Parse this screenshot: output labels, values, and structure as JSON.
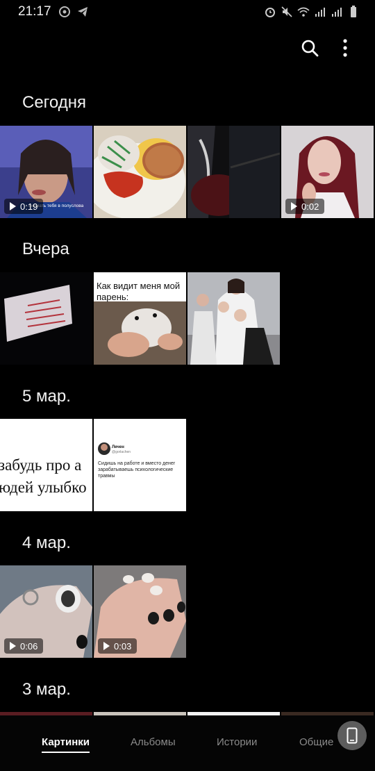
{
  "status_bar": {
    "time": "21:17"
  },
  "sections": [
    {
      "title": "Сегодня",
      "items": [
        {
          "kind": "video",
          "duration": "0:19",
          "caption": "...снимать тебя в полуслова"
        },
        {
          "kind": "photo"
        },
        {
          "kind": "photo"
        },
        {
          "kind": "video",
          "duration": "0:02"
        }
      ]
    },
    {
      "title": "Вчера",
      "items": [
        {
          "kind": "photo"
        },
        {
          "kind": "photo",
          "meme_text": "Как видит меня мой парень:"
        },
        {
          "kind": "photo"
        }
      ]
    },
    {
      "title": "5 мар.",
      "items": [
        {
          "kind": "photo",
          "line1": "забудь про а",
          "line2": "юдей улыбко"
        },
        {
          "kind": "photo",
          "tweet_name": "Лечен",
          "tweet_handle": "@gorlachen",
          "tweet_text": "Сидишь на работе и вместо денег зарабатываешь психологические травмы"
        }
      ]
    },
    {
      "title": "4 мар.",
      "items": [
        {
          "kind": "video",
          "duration": "0:06"
        },
        {
          "kind": "video",
          "duration": "0:03"
        }
      ]
    },
    {
      "title": "3 мар.",
      "items": []
    }
  ],
  "bottom_nav": {
    "tabs": [
      "Картинки",
      "Альбомы",
      "Истории",
      "Общие"
    ],
    "active": 0
  },
  "colors": {
    "background": "#000000",
    "accent_text": "#ffffff",
    "inactive_tab": "#8a8a8a"
  }
}
